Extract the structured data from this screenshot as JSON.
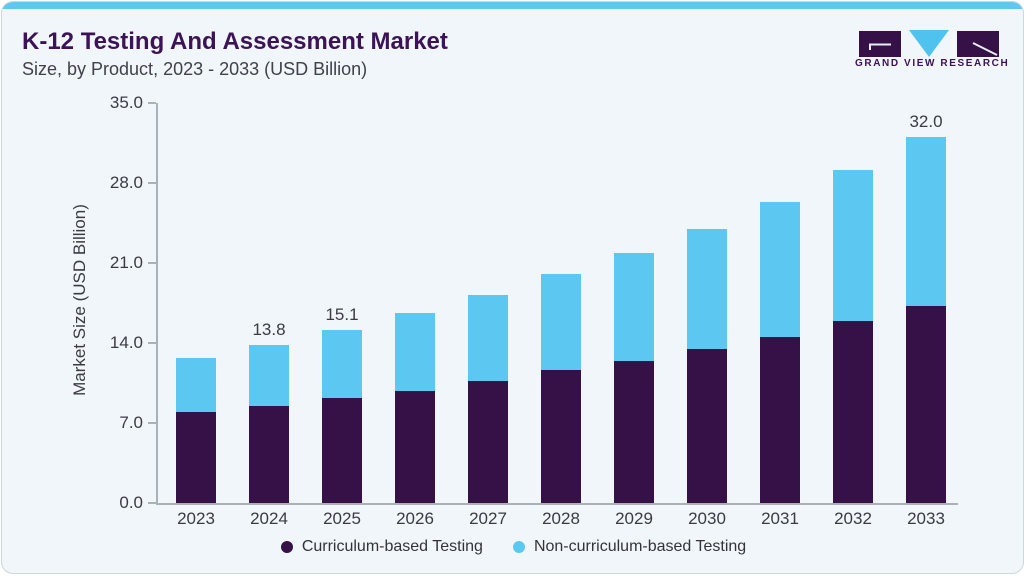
{
  "page": {
    "title": "K-12 Testing And Assessment Market",
    "subtitle": "Size, by Product, 2023 - 2033 (USD Billion)"
  },
  "logo": {
    "text": "GRAND VIEW RESEARCH"
  },
  "colors": {
    "accent_bar": "#5EC8F1",
    "curriculum": "#351148",
    "non_curriculum": "#5CC8F2",
    "title_purple": "#3C1357",
    "text_gray": "#3A3B43",
    "card_bg": "#F0F6FA",
    "axis": "#A9B2B9"
  },
  "chart_data": {
    "type": "bar",
    "stacked": true,
    "title": "K-12 Testing And Assessment Market Size, by Product, 2023 - 2033 (USD Billion)",
    "categories": [
      "2023",
      "2024",
      "2025",
      "2026",
      "2027",
      "2028",
      "2029",
      "2030",
      "2031",
      "2032",
      "2033"
    ],
    "series": [
      {
        "name": "Curriculum-based Testing",
        "color": "#351148",
        "values": [
          8.0,
          8.5,
          9.2,
          9.8,
          10.7,
          11.6,
          12.4,
          13.5,
          14.5,
          15.9,
          17.2
        ]
      },
      {
        "name": "Non-curriculum-based Testing",
        "color": "#5CC8F2",
        "values": [
          4.7,
          5.3,
          5.9,
          6.8,
          7.5,
          8.4,
          9.5,
          10.5,
          11.8,
          13.2,
          14.8
        ]
      }
    ],
    "totals": [
      12.7,
      13.8,
      15.1,
      16.6,
      18.2,
      20.0,
      21.9,
      24.0,
      26.3,
      29.1,
      32.0
    ],
    "total_labels": {
      "2024": "13.8",
      "2025": "15.1",
      "2033": "32.0"
    },
    "ylabel": "Market Size (USD Billion)",
    "yticks": [
      "0.0",
      "7.0",
      "14.0",
      "21.0",
      "28.0",
      "35.0"
    ],
    "ylim": [
      0,
      35
    ],
    "grid": false,
    "legend_position": "bottom",
    "legend": [
      "Curriculum-based Testing",
      "Non-curriculum-based Testing"
    ]
  }
}
